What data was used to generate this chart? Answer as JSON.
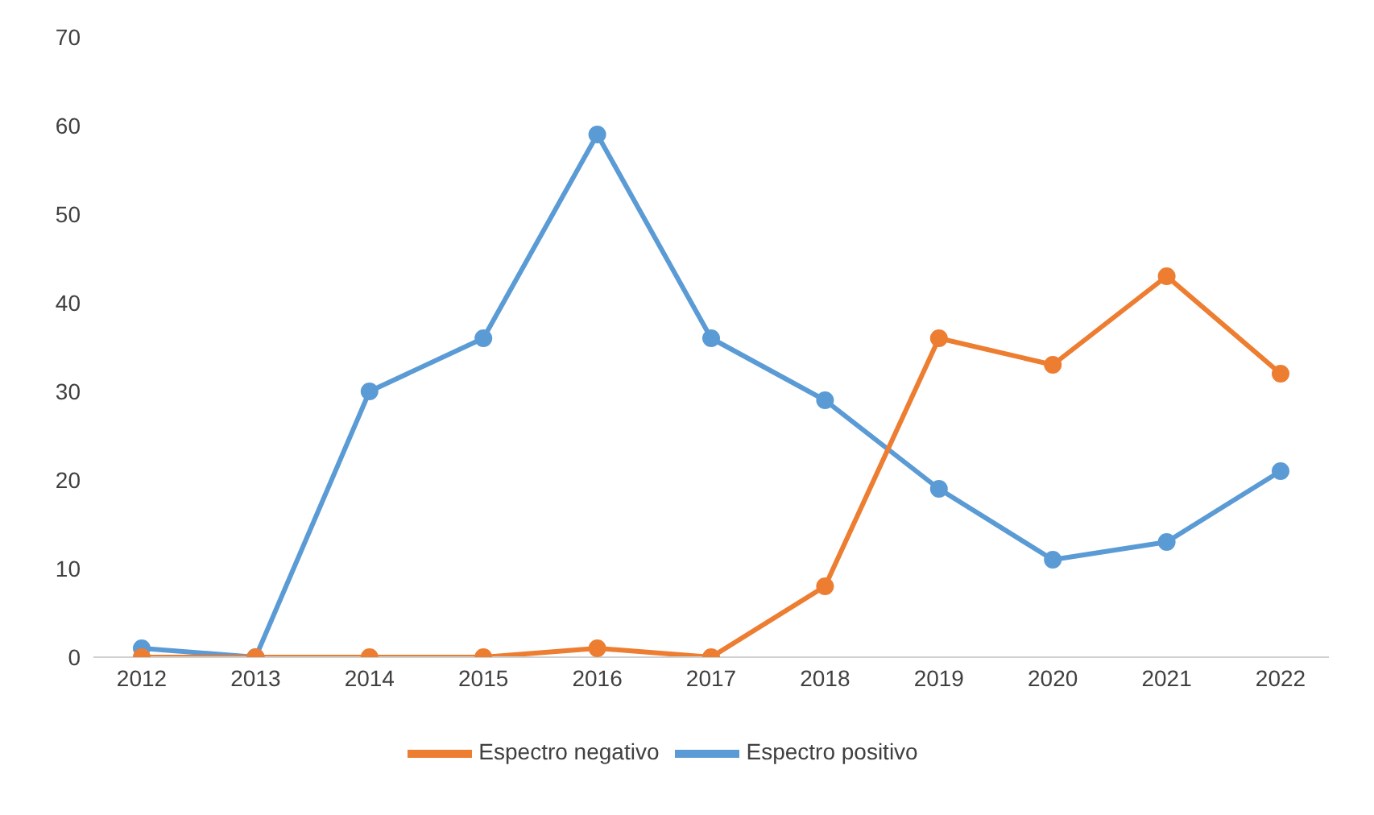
{
  "chart_data": {
    "type": "line",
    "categories": [
      "2012",
      "2013",
      "2014",
      "2015",
      "2016",
      "2017",
      "2018",
      "2019",
      "2020",
      "2021",
      "2022"
    ],
    "series": [
      {
        "name": "Espectro positivo",
        "color": "#5b9bd5",
        "values": [
          1,
          0,
          30,
          36,
          59,
          36,
          29,
          19,
          11,
          13,
          21
        ]
      },
      {
        "name": "Espectro negativo",
        "color": "#ed7d31",
        "values": [
          0,
          0,
          0,
          0,
          1,
          0,
          8,
          36,
          33,
          43,
          32
        ]
      }
    ],
    "ylim": [
      0,
      70
    ],
    "yticks": [
      0,
      10,
      20,
      30,
      40,
      50,
      60,
      70
    ],
    "grid": false,
    "legend": "bottom",
    "marker": "circle",
    "line_style": "solid"
  }
}
